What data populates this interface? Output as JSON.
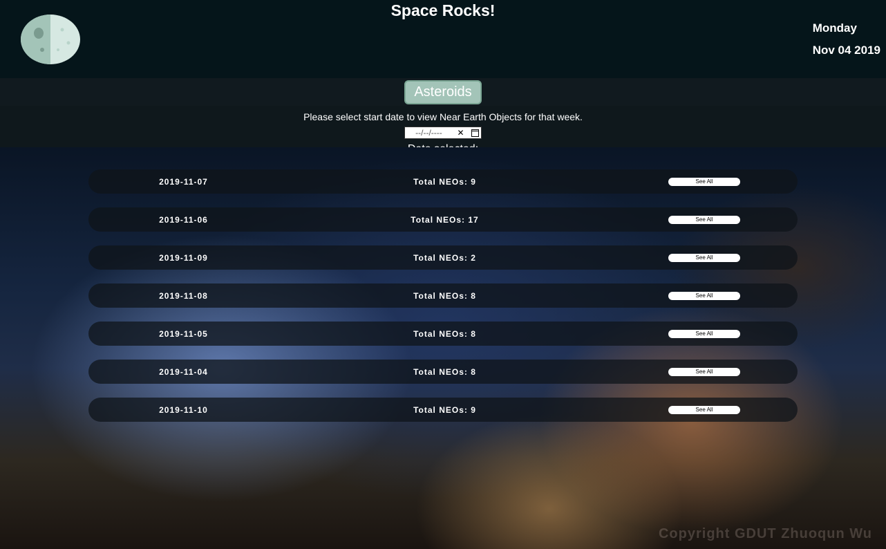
{
  "header": {
    "title": "Space Rocks!",
    "logo_colors": {
      "light": "#d6e8e2",
      "dark": "#a3c4b8",
      "crater": "#7a9b8f"
    },
    "date_day": "Monday",
    "date_full": "Nov 04 2019"
  },
  "nav": {
    "asteroids_label": "Asteroids",
    "button_bg": "#a3c4b8",
    "button_border": "#7ba694"
  },
  "controls": {
    "instruction": "Please select start date to view Near Earth Objects for that week.",
    "date_placeholder": "--/--/----",
    "selected_label": "Date selected:"
  },
  "neo_list": {
    "total_prefix": "Total NEOs: ",
    "see_all_label": "See All",
    "row_bg": "rgba(15, 20, 25, 0.75)",
    "button_bg": "#ffffff",
    "rows": [
      {
        "date": "2019-11-07",
        "count": 9
      },
      {
        "date": "2019-11-06",
        "count": 17
      },
      {
        "date": "2019-11-09",
        "count": 2
      },
      {
        "date": "2019-11-08",
        "count": 8
      },
      {
        "date": "2019-11-05",
        "count": 8
      },
      {
        "date": "2019-11-04",
        "count": 8
      },
      {
        "date": "2019-11-10",
        "count": 9
      }
    ]
  },
  "footer": {
    "watermark": "Copyright GDUT Zhuoqun Wu"
  }
}
